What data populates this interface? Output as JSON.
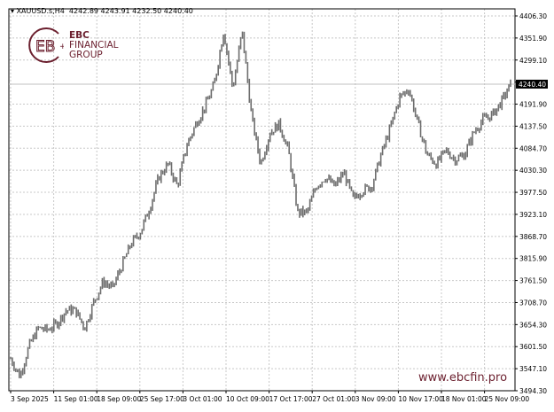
{
  "header": {
    "symbol": "XAUUSD.s,H4",
    "ohlc": "4242.89 4243.91 4232.50 4240.40"
  },
  "logo": {
    "line1": "EBC",
    "line2": "FINANCIAL",
    "line3": "GROUP"
  },
  "website": "www.ebcfin.pro",
  "colors": {
    "bars": "#6e6e6e",
    "brand": "#6b1f2e",
    "grid": "#c8c8c8"
  },
  "chart_data": {
    "type": "bar",
    "title": "XAUUSD.s,H4",
    "current_price": 4240.4,
    "ylim": [
      3494.3,
      4406.3
    ],
    "y_ticks": [
      "4406.30",
      "4351.90",
      "4299.10",
      "4240.40",
      "4191.90",
      "4137.50",
      "4084.70",
      "4030.30",
      "3977.50",
      "3923.10",
      "3868.70",
      "3815.90",
      "3761.50",
      "3708.70",
      "3654.30",
      "3601.50",
      "3547.10",
      "3494.30"
    ],
    "x_ticks": [
      "3 Sep 2025",
      "11 Sep 01:00",
      "18 Sep 09:00",
      "25 Sep 17:00",
      "3 Oct 01:00",
      "10 Oct 09:00",
      "17 Oct 17:00",
      "27 Oct 01:00",
      "3 Nov 09:00",
      "10 Nov 17:00",
      "18 Nov 01:00",
      "25 Nov 09:00"
    ],
    "grid": true,
    "closes": [
      3572,
      3529,
      3604,
      3647,
      3642,
      3658,
      3690,
      3690,
      3647,
      3712,
      3760,
      3744,
      3798,
      3852,
      3880,
      3938,
      4014,
      4046,
      3992,
      4090,
      4143,
      4186,
      4240,
      4370,
      4229,
      4370,
      4165,
      4046,
      4122,
      4143,
      4079,
      3928,
      3928,
      3992,
      4014,
      3992,
      4025,
      3960,
      3982,
      3992,
      4068,
      4133,
      4208,
      4229,
      4143,
      4068,
      4046,
      4079,
      4057,
      4068,
      4122,
      4154,
      4165,
      4197,
      4240
    ]
  }
}
